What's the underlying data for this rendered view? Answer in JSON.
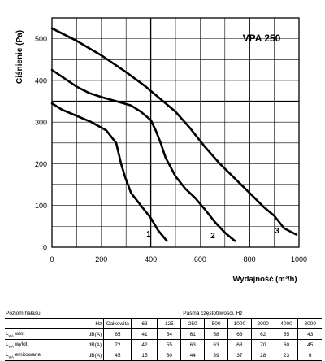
{
  "chart_data": {
    "type": "line",
    "title": "VPA 250",
    "xlabel": "Wydajność (m³/h)",
    "ylabel": "Ciśnienie (Pa)",
    "xlim": [
      0,
      1000
    ],
    "ylim": [
      0,
      550
    ],
    "xticks": [
      0,
      200,
      400,
      600,
      800,
      1000
    ],
    "yticks": [
      0,
      100,
      200,
      300,
      400,
      500
    ],
    "grid": true,
    "series": [
      {
        "name": "1",
        "points": [
          [
            0,
            345
          ],
          [
            40,
            330
          ],
          [
            100,
            315
          ],
          [
            160,
            300
          ],
          [
            220,
            280
          ],
          [
            260,
            250
          ],
          [
            280,
            200
          ],
          [
            295,
            170
          ],
          [
            320,
            130
          ],
          [
            360,
            100
          ],
          [
            400,
            70
          ],
          [
            430,
            40
          ],
          [
            465,
            15
          ]
        ]
      },
      {
        "name": "2",
        "points": [
          [
            0,
            425
          ],
          [
            50,
            405
          ],
          [
            100,
            385
          ],
          [
            150,
            370
          ],
          [
            200,
            360
          ],
          [
            260,
            350
          ],
          [
            320,
            340
          ],
          [
            360,
            325
          ],
          [
            400,
            305
          ],
          [
            420,
            280
          ],
          [
            440,
            250
          ],
          [
            460,
            215
          ],
          [
            500,
            170
          ],
          [
            540,
            140
          ],
          [
            580,
            118
          ],
          [
            620,
            90
          ],
          [
            660,
            60
          ],
          [
            700,
            35
          ],
          [
            740,
            15
          ]
        ]
      },
      {
        "name": "3",
        "points": [
          [
            0,
            525
          ],
          [
            100,
            495
          ],
          [
            200,
            460
          ],
          [
            300,
            420
          ],
          [
            380,
            385
          ],
          [
            440,
            355
          ],
          [
            500,
            325
          ],
          [
            560,
            285
          ],
          [
            620,
            240
          ],
          [
            680,
            200
          ],
          [
            740,
            165
          ],
          [
            800,
            130
          ],
          [
            860,
            95
          ],
          [
            900,
            75
          ],
          [
            940,
            45
          ],
          [
            990,
            30
          ]
        ]
      }
    ]
  },
  "table": {
    "title": "Poziom hałasu",
    "band_header": "Pasma częstotliwości, Hz",
    "hz_label": "Hz",
    "columns": [
      "Całkowita",
      "63",
      "125",
      "250",
      "500",
      "1000",
      "2000",
      "4000",
      "8000"
    ],
    "rows": [
      {
        "label_main": "L",
        "label_sub": "wA",
        "label_rest": " wlot",
        "unit": "dB(A)",
        "values": [
          "65",
          "41",
          "54",
          "61",
          "58",
          "63",
          "62",
          "55",
          "43"
        ]
      },
      {
        "label_main": "L",
        "label_sub": "wA",
        "label_rest": " wylot",
        "unit": "dB(A)",
        "values": [
          "72",
          "42",
          "55",
          "63",
          "63",
          "68",
          "70",
          "60",
          "45"
        ]
      },
      {
        "label_main": "L",
        "label_sub": "wA",
        "label_rest": " emitowane",
        "unit": "dB(A)",
        "values": [
          "45",
          "15",
          "30",
          "44",
          "39",
          "37",
          "28",
          "23",
          "6"
        ]
      }
    ]
  }
}
